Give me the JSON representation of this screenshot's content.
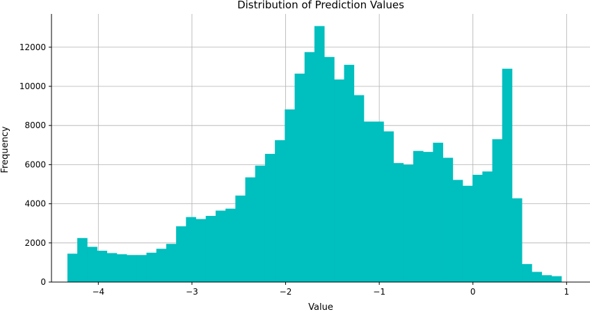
{
  "chart_data": {
    "type": "bar",
    "title": "Distribution of Prediction Values",
    "xlabel": "Value",
    "ylabel": "Frequency",
    "xlim": [
      -4.5,
      1.25
    ],
    "ylim": [
      0,
      13700
    ],
    "grid": true,
    "bar_color": "#00bfbf",
    "grid_color": "#b0b0b0",
    "x_ticks": [
      -4,
      -3,
      -2,
      -1,
      0,
      1
    ],
    "x_tick_labels": [
      "−4",
      "−3",
      "−2",
      "−1",
      "0",
      "1"
    ],
    "y_ticks": [
      0,
      2000,
      4000,
      6000,
      8000,
      10000,
      12000
    ],
    "y_tick_labels": [
      "0",
      "2000",
      "4000",
      "6000",
      "8000",
      "10000",
      "12000"
    ],
    "bins_start": -4.33,
    "bin_width": 0.1055,
    "values": [
      1450,
      2250,
      1800,
      1600,
      1480,
      1420,
      1380,
      1380,
      1500,
      1700,
      1950,
      2850,
      3320,
      3220,
      3380,
      3650,
      3750,
      4420,
      5350,
      5950,
      6550,
      7250,
      8820,
      10650,
      11750,
      13080,
      11500,
      10350,
      11100,
      9550,
      8200,
      8200,
      7700,
      6080,
      6000,
      6700,
      6650,
      7120,
      6350,
      5220,
      4920,
      5480,
      5650,
      7300,
      10900,
      4280,
      920,
      520,
      350,
      300
    ]
  }
}
